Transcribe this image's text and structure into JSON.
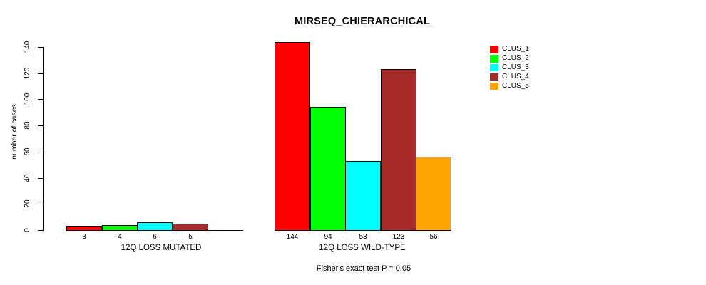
{
  "chart_data": {
    "type": "bar",
    "title": "MIRSEQ_CHIERARCHICAL",
    "subtitle": "Fisher's exact test P = 0.05",
    "ylabel": "number of cases",
    "xlabel": "",
    "ylim": [
      0,
      140
    ],
    "yticks": [
      0,
      20,
      40,
      60,
      80,
      100,
      120,
      140
    ],
    "grid": false,
    "background_color": "#ffffff",
    "bar_border_color": "#000000",
    "legend": {
      "position": "top-right",
      "entries": [
        {
          "label": "CLUS_1",
          "color": "#ff0000"
        },
        {
          "label": "CLUS_2",
          "color": "#00ff00"
        },
        {
          "label": "CLUS_3",
          "color": "#00ffff"
        },
        {
          "label": "CLUS_4",
          "color": "#a52a2a"
        },
        {
          "label": "CLUS_5",
          "color": "#ffa500"
        }
      ]
    },
    "groups": [
      {
        "label": "12Q LOSS MUTATED",
        "values": [
          3,
          4,
          6,
          5,
          0
        ],
        "bar_labels": [
          "3",
          "4",
          "6",
          "5",
          ""
        ]
      },
      {
        "label": "12Q LOSS WILD-TYPE",
        "values": [
          144,
          94,
          53,
          123,
          56
        ],
        "bar_labels": [
          "144",
          "94",
          "53",
          "123",
          "56"
        ]
      }
    ]
  }
}
